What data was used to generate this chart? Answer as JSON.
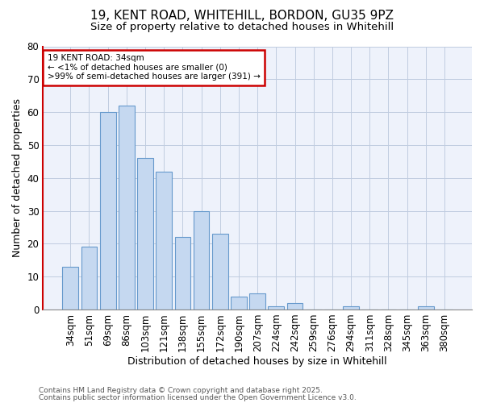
{
  "title1": "19, KENT ROAD, WHITEHILL, BORDON, GU35 9PZ",
  "title2": "Size of property relative to detached houses in Whitehill",
  "xlabel": "Distribution of detached houses by size in Whitehill",
  "ylabel": "Number of detached properties",
  "categories": [
    "34sqm",
    "51sqm",
    "69sqm",
    "86sqm",
    "103sqm",
    "121sqm",
    "138sqm",
    "155sqm",
    "172sqm",
    "190sqm",
    "207sqm",
    "224sqm",
    "242sqm",
    "259sqm",
    "276sqm",
    "294sqm",
    "311sqm",
    "328sqm",
    "345sqm",
    "363sqm",
    "380sqm"
  ],
  "values": [
    13,
    19,
    60,
    62,
    46,
    42,
    22,
    30,
    23,
    4,
    5,
    1,
    2,
    0,
    0,
    1,
    0,
    0,
    0,
    1,
    0
  ],
  "bar_color": "#c5d8f0",
  "bar_edge_color": "#6699cc",
  "annotation_text": "19 KENT ROAD: 34sqm\n← <1% of detached houses are smaller (0)\n>99% of semi-detached houses are larger (391) →",
  "annotation_box_color": "#ffffff",
  "annotation_box_edge": "#cc0000",
  "red_spine_color": "#cc0000",
  "ylim": [
    0,
    80
  ],
  "yticks": [
    0,
    10,
    20,
    30,
    40,
    50,
    60,
    70,
    80
  ],
  "footer1": "Contains HM Land Registry data © Crown copyright and database right 2025.",
  "footer2": "Contains public sector information licensed under the Open Government Licence v3.0.",
  "bg_color": "#ffffff",
  "plot_bg_color": "#eef2fb",
  "grid_color": "#c0cce0",
  "title1_fontsize": 11,
  "title2_fontsize": 9.5,
  "xlabel_fontsize": 9,
  "ylabel_fontsize": 9,
  "tick_fontsize": 8.5,
  "footer_fontsize": 6.5
}
